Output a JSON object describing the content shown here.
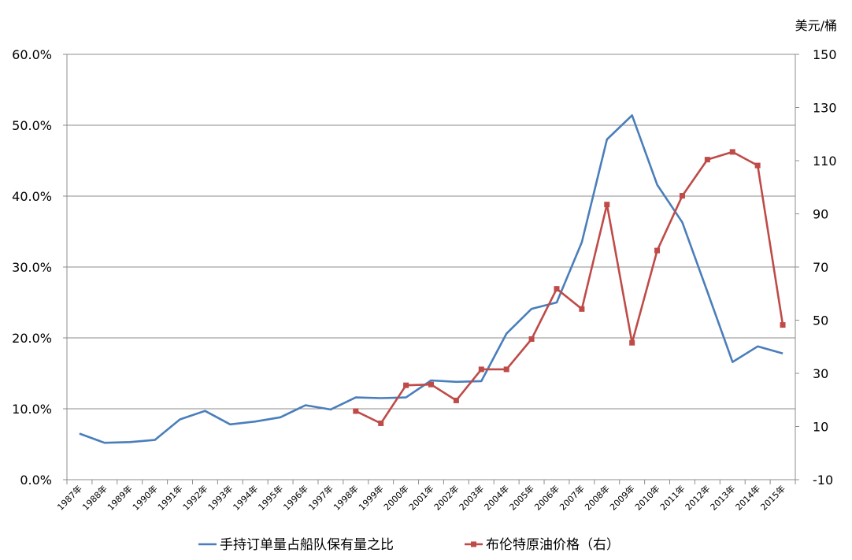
{
  "chart_data": {
    "type": "line",
    "title": "",
    "xlabel": "",
    "right_unit_label": "美元/桶",
    "categories": [
      "1987年",
      "1988年",
      "1989年",
      "1990年",
      "1991年",
      "1992年",
      "1993年",
      "1994年",
      "1995年",
      "1996年",
      "1997年",
      "1998年",
      "1999年",
      "2000年",
      "2001年",
      "2002年",
      "2003年",
      "2004年",
      "2005年",
      "2006年",
      "2007年",
      "2008年",
      "2009年",
      "2010年",
      "2011年",
      "2012年",
      "2013年",
      "2014年",
      "2015年"
    ],
    "left_axis": {
      "ylim": [
        0,
        60
      ],
      "ticks": [
        0,
        10,
        20,
        30,
        40,
        50,
        60
      ],
      "tick_labels": [
        "0.0%",
        "10.0%",
        "20.0%",
        "30.0%",
        "40.0%",
        "50.0%",
        "60.0%"
      ]
    },
    "right_axis": {
      "ylim": [
        -10,
        150
      ],
      "ticks": [
        -10,
        10,
        30,
        50,
        70,
        90,
        110,
        130,
        150
      ],
      "tick_labels": [
        "-10",
        "10",
        "30",
        "50",
        "70",
        "90",
        "110",
        "130",
        "150"
      ]
    },
    "grid": true,
    "legend_position": "bottom",
    "series": [
      {
        "name": "手持订单量占船队保有量之比",
        "axis": "left",
        "color": "#4a7ebb",
        "marker": "none",
        "values": [
          6.5,
          5.2,
          5.3,
          5.6,
          8.5,
          9.7,
          7.8,
          8.2,
          8.8,
          10.5,
          9.9,
          11.6,
          11.5,
          11.6,
          14.0,
          13.8,
          13.9,
          20.6,
          24.1,
          25.0,
          33.5,
          48.0,
          51.4,
          41.6,
          36.3,
          26.5,
          16.6,
          18.8,
          17.8
        ]
      },
      {
        "name": "布伦特原油价格（右）",
        "axis": "right",
        "color": "#be4b48",
        "marker": "square",
        "values": [
          null,
          null,
          null,
          null,
          null,
          null,
          null,
          null,
          null,
          null,
          null,
          15.8,
          11.2,
          25.5,
          25.8,
          19.8,
          31.5,
          31.5,
          42.9,
          61.8,
          54.2,
          93.5,
          41.5,
          76.2,
          96.8,
          110.4,
          113.3,
          108.2,
          48.2
        ]
      }
    ]
  }
}
